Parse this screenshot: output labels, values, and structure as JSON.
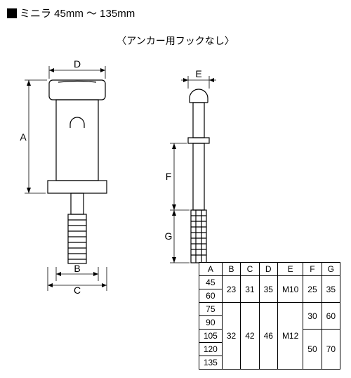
{
  "title": "ミニラ 45mm ～ 135mm",
  "subtitle": "〈アンカー用フックなし〉",
  "dim_labels": {
    "A": "A",
    "B": "B",
    "C": "C",
    "D": "D",
    "E": "E",
    "F": "F",
    "G": "G"
  },
  "diagram_style": {
    "stroke": "#000000",
    "stroke_width": 1.2,
    "arrow_stroke_width": 0.8,
    "background": "#ffffff"
  },
  "table": {
    "columns": [
      "A",
      "B",
      "C",
      "D",
      "E",
      "F",
      "G"
    ],
    "rows": [
      {
        "A": "45",
        "B": "23",
        "C": "31",
        "D": "35",
        "E": "M10",
        "F": "25",
        "G": "35",
        "merge": {
          "B": 2,
          "C": 2,
          "D": 2,
          "E": 2,
          "F": 2,
          "G": 2
        }
      },
      {
        "A": "60"
      },
      {
        "A": "75",
        "B": "32",
        "C": "42",
        "D": "46",
        "E": "M12",
        "F": "30",
        "G": "60",
        "merge": {
          "B": 5,
          "C": 5,
          "D": 5,
          "E": 5,
          "F": 2,
          "G": 2
        }
      },
      {
        "A": "90"
      },
      {
        "A": "105",
        "F": "50",
        "G": "70",
        "merge": {
          "F": 3,
          "G": 3
        }
      },
      {
        "A": "120"
      },
      {
        "A": "135"
      }
    ]
  }
}
